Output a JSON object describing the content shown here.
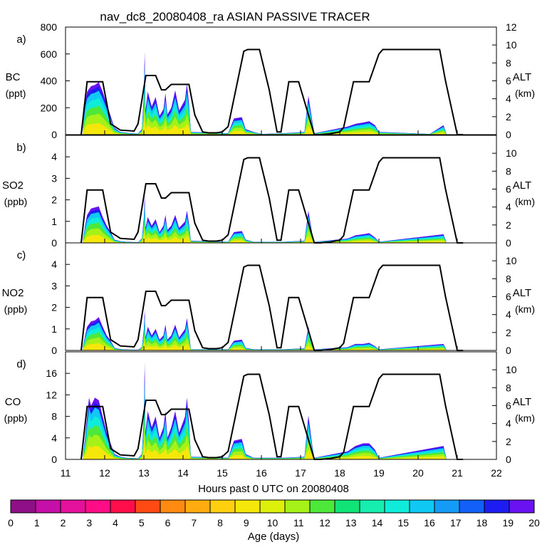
{
  "title": "nav_dc8_20080408_ra ASIAN PASSIVE TRACER",
  "chart_data": {
    "type": "area",
    "x_axis": {
      "label": "Hours past 0 UTC on 20080408",
      "range": [
        11,
        22
      ],
      "ticks": [
        "11",
        "12",
        "13",
        "14",
        "15",
        "16",
        "17",
        "18",
        "19",
        "20",
        "21",
        "22"
      ]
    },
    "altitude": {
      "label": "ALT",
      "unit": "(km)",
      "points": [
        [
          11.4,
          0
        ],
        [
          11.55,
          5.9
        ],
        [
          11.95,
          5.9
        ],
        [
          12.15,
          1.2
        ],
        [
          12.4,
          0.5
        ],
        [
          12.75,
          0.4
        ],
        [
          12.85,
          1.2
        ],
        [
          13.05,
          6.6
        ],
        [
          13.3,
          6.6
        ],
        [
          13.45,
          5.0
        ],
        [
          13.55,
          5.0
        ],
        [
          13.7,
          5.6
        ],
        [
          14.15,
          5.6
        ],
        [
          14.3,
          2.2
        ],
        [
          14.5,
          0.3
        ],
        [
          14.65,
          0.2
        ],
        [
          14.85,
          0.2
        ],
        [
          15.0,
          0.3
        ],
        [
          15.15,
          0.9
        ],
        [
          15.55,
          9.3
        ],
        [
          15.65,
          9.5
        ],
        [
          15.95,
          9.5
        ],
        [
          16.2,
          5.0
        ],
        [
          16.4,
          0.3
        ],
        [
          16.5,
          0.3
        ],
        [
          16.7,
          5.9
        ],
        [
          16.95,
          5.9
        ],
        [
          17.35,
          0
        ],
        [
          17.5,
          0
        ],
        [
          17.75,
          0.1
        ],
        [
          18.0,
          0.3
        ],
        [
          18.1,
          0.8
        ],
        [
          18.35,
          5.9
        ],
        [
          18.75,
          5.9
        ],
        [
          19.0,
          9.0
        ],
        [
          19.1,
          9.5
        ],
        [
          20.55,
          9.5
        ],
        [
          20.7,
          6.0
        ],
        [
          21.0,
          0
        ],
        [
          21.15,
          0
        ]
      ]
    },
    "panels": [
      {
        "id": "a)",
        "species": "BC",
        "unit": "(ppt)",
        "ylim": [
          0,
          800
        ],
        "yticks": [
          "0",
          "200",
          "400",
          "600",
          "800"
        ],
        "alt_ticks": [
          "0",
          "2",
          "4",
          "6",
          "8",
          "10",
          "12"
        ],
        "alt_max": 12,
        "tracer": [
          [
            11.45,
            60
          ],
          [
            11.5,
            240
          ],
          [
            11.55,
            320
          ],
          [
            11.65,
            360
          ],
          [
            11.75,
            370
          ],
          [
            11.85,
            390
          ],
          [
            11.95,
            320
          ],
          [
            12.05,
            230
          ],
          [
            12.15,
            140
          ],
          [
            12.25,
            50
          ],
          [
            12.4,
            20
          ],
          [
            12.55,
            15
          ],
          [
            12.65,
            10
          ],
          [
            12.85,
            8
          ],
          [
            12.95,
            40
          ],
          [
            13.0,
            300
          ],
          [
            13.02,
            620
          ],
          [
            13.04,
            180
          ],
          [
            13.1,
            320
          ],
          [
            13.2,
            210
          ],
          [
            13.3,
            280
          ],
          [
            13.4,
            140
          ],
          [
            13.5,
            190
          ],
          [
            13.55,
            310
          ],
          [
            13.6,
            150
          ],
          [
            13.7,
            200
          ],
          [
            13.8,
            330
          ],
          [
            13.9,
            180
          ],
          [
            14.05,
            260
          ],
          [
            14.1,
            380
          ],
          [
            14.15,
            230
          ],
          [
            14.2,
            20
          ],
          [
            15.15,
            10
          ],
          [
            15.3,
            120
          ],
          [
            15.5,
            130
          ],
          [
            15.6,
            40
          ],
          [
            15.8,
            20
          ],
          [
            16.0,
            5
          ],
          [
            16.55,
            10
          ],
          [
            17.1,
            20
          ],
          [
            17.2,
            290
          ],
          [
            17.3,
            100
          ],
          [
            17.35,
            10
          ],
          [
            18.2,
            60
          ],
          [
            18.4,
            80
          ],
          [
            18.6,
            90
          ],
          [
            18.75,
            100
          ],
          [
            18.9,
            70
          ],
          [
            19.0,
            20
          ],
          [
            20.3,
            5
          ],
          [
            20.65,
            70
          ],
          [
            20.72,
            10
          ]
        ]
      },
      {
        "id": "b)",
        "species": "SO2",
        "unit": "(ppb)",
        "ylim": [
          0,
          5
        ],
        "yticks": [
          "0",
          "1",
          "2",
          "3",
          "4"
        ],
        "alt_ticks": [
          "0",
          "2",
          "4",
          "6",
          "8",
          "10"
        ],
        "alt_max": 12,
        "tracer": [
          [
            11.45,
            0.2
          ],
          [
            11.5,
            0.8
          ],
          [
            11.55,
            1.3
          ],
          [
            11.65,
            1.6
          ],
          [
            11.75,
            1.65
          ],
          [
            11.85,
            1.7
          ],
          [
            11.95,
            1.2
          ],
          [
            12.05,
            0.8
          ],
          [
            12.15,
            0.5
          ],
          [
            12.25,
            0.15
          ],
          [
            12.4,
            0.08
          ],
          [
            12.55,
            0.05
          ],
          [
            12.85,
            0.03
          ],
          [
            12.95,
            0.2
          ],
          [
            13.0,
            1.2
          ],
          [
            13.02,
            2.2
          ],
          [
            13.04,
            0.7
          ],
          [
            13.1,
            1.2
          ],
          [
            13.2,
            0.8
          ],
          [
            13.3,
            1.1
          ],
          [
            13.4,
            0.5
          ],
          [
            13.5,
            0.8
          ],
          [
            13.55,
            1.3
          ],
          [
            13.6,
            0.6
          ],
          [
            13.7,
            0.8
          ],
          [
            13.8,
            1.3
          ],
          [
            13.9,
            0.7
          ],
          [
            14.05,
            1.0
          ],
          [
            14.1,
            1.5
          ],
          [
            14.15,
            0.9
          ],
          [
            14.2,
            0.1
          ],
          [
            15.15,
            0.05
          ],
          [
            15.3,
            0.5
          ],
          [
            15.5,
            0.55
          ],
          [
            15.6,
            0.15
          ],
          [
            15.8,
            0.05
          ],
          [
            16.55,
            0.05
          ],
          [
            17.1,
            0.1
          ],
          [
            17.2,
            1.5
          ],
          [
            17.3,
            0.4
          ],
          [
            17.35,
            0.05
          ],
          [
            18.2,
            0.2
          ],
          [
            18.4,
            0.35
          ],
          [
            18.6,
            0.4
          ],
          [
            18.75,
            0.45
          ],
          [
            18.9,
            0.25
          ],
          [
            19.0,
            0.05
          ],
          [
            20.65,
            0.4
          ],
          [
            20.72,
            0.05
          ]
        ]
      },
      {
        "id": "c)",
        "species": "NO2",
        "unit": "(ppb)",
        "ylim": [
          0,
          5
        ],
        "yticks": [
          "0",
          "1",
          "2",
          "3",
          "4"
        ],
        "alt_ticks": [
          "0",
          "2",
          "4",
          "6",
          "8",
          "10"
        ],
        "alt_max": 12,
        "tracer": [
          [
            11.45,
            0.2
          ],
          [
            11.5,
            0.7
          ],
          [
            11.55,
            1.1
          ],
          [
            11.65,
            1.35
          ],
          [
            11.75,
            1.4
          ],
          [
            11.85,
            1.55
          ],
          [
            11.95,
            1.1
          ],
          [
            12.05,
            0.7
          ],
          [
            12.15,
            0.45
          ],
          [
            12.25,
            0.12
          ],
          [
            12.4,
            0.06
          ],
          [
            12.55,
            0.04
          ],
          [
            12.85,
            0.03
          ],
          [
            12.95,
            0.15
          ],
          [
            13.0,
            1.0
          ],
          [
            13.02,
            1.9
          ],
          [
            13.04,
            0.6
          ],
          [
            13.1,
            1.1
          ],
          [
            13.2,
            0.7
          ],
          [
            13.3,
            1.0
          ],
          [
            13.4,
            0.5
          ],
          [
            13.5,
            0.7
          ],
          [
            13.55,
            1.2
          ],
          [
            13.6,
            0.5
          ],
          [
            13.7,
            0.7
          ],
          [
            13.8,
            1.2
          ],
          [
            13.9,
            0.6
          ],
          [
            14.05,
            1.0
          ],
          [
            14.1,
            1.5
          ],
          [
            14.15,
            0.8
          ],
          [
            14.2,
            0.05
          ],
          [
            15.15,
            0.05
          ],
          [
            15.3,
            0.45
          ],
          [
            15.5,
            0.5
          ],
          [
            15.6,
            0.12
          ],
          [
            15.8,
            0.05
          ],
          [
            16.55,
            0.05
          ],
          [
            17.1,
            0.1
          ],
          [
            17.2,
            1.1
          ],
          [
            17.3,
            0.3
          ],
          [
            17.35,
            0.05
          ],
          [
            18.2,
            0.15
          ],
          [
            18.4,
            0.3
          ],
          [
            18.6,
            0.3
          ],
          [
            18.75,
            0.35
          ],
          [
            18.9,
            0.2
          ],
          [
            19.0,
            0.05
          ],
          [
            20.65,
            0.3
          ],
          [
            20.72,
            0.05
          ]
        ]
      },
      {
        "id": "d)",
        "species": "CO",
        "unit": "(ppb)",
        "ylim": [
          0,
          20
        ],
        "yticks": [
          "0",
          "4",
          "8",
          "12",
          "16"
        ],
        "alt_ticks": [
          "0",
          "2",
          "4",
          "6",
          "8",
          "10"
        ],
        "alt_max": 12,
        "tracer": [
          [
            11.45,
            1
          ],
          [
            11.5,
            4
          ],
          [
            11.55,
            8
          ],
          [
            11.6,
            11.5
          ],
          [
            11.65,
            10
          ],
          [
            11.75,
            11.5
          ],
          [
            11.85,
            11
          ],
          [
            11.95,
            8
          ],
          [
            12.05,
            5
          ],
          [
            12.15,
            3
          ],
          [
            12.25,
            1
          ],
          [
            12.4,
            0.5
          ],
          [
            12.55,
            0.3
          ],
          [
            12.85,
            0.2
          ],
          [
            12.95,
            1
          ],
          [
            13.0,
            8
          ],
          [
            13.02,
            18
          ],
          [
            13.04,
            5
          ],
          [
            13.1,
            9
          ],
          [
            13.2,
            6
          ],
          [
            13.3,
            8
          ],
          [
            13.4,
            4
          ],
          [
            13.5,
            6
          ],
          [
            13.55,
            9
          ],
          [
            13.6,
            4
          ],
          [
            13.7,
            6
          ],
          [
            13.8,
            9
          ],
          [
            13.9,
            5
          ],
          [
            14.05,
            8
          ],
          [
            14.1,
            11.5
          ],
          [
            14.15,
            7
          ],
          [
            14.2,
            0.5
          ],
          [
            15.15,
            0.3
          ],
          [
            15.3,
            3.5
          ],
          [
            15.5,
            3.8
          ],
          [
            15.6,
            1
          ],
          [
            15.8,
            0.3
          ],
          [
            16.55,
            0.3
          ],
          [
            17.1,
            0.5
          ],
          [
            17.2,
            8.2
          ],
          [
            17.3,
            2.5
          ],
          [
            17.35,
            0.3
          ],
          [
            18.2,
            1.5
          ],
          [
            18.4,
            2.5
          ],
          [
            18.6,
            3
          ],
          [
            18.75,
            3
          ],
          [
            18.9,
            1.8
          ],
          [
            19.0,
            0.3
          ],
          [
            20.65,
            2.5
          ],
          [
            20.72,
            0.3
          ]
        ]
      }
    ],
    "colorbar": {
      "label": "Age (days)",
      "ticks": [
        "0",
        "1",
        "2",
        "3",
        "4",
        "5",
        "6",
        "7",
        "8",
        "9",
        "10",
        "11",
        "12",
        "13",
        "14",
        "15",
        "16",
        "17",
        "18",
        "19",
        "20"
      ],
      "colors": [
        "#8f0f86",
        "#c410a8",
        "#e4119c",
        "#ff0d87",
        "#ff0e4a",
        "#ff4a16",
        "#ff8a12",
        "#ffac10",
        "#ffd010",
        "#f5e70a",
        "#dcf00a",
        "#a6f218",
        "#4ee83a",
        "#10e476",
        "#15eeae",
        "#10ecda",
        "#0fc8f4",
        "#149bf8",
        "#1260f8",
        "#1d1cf2",
        "#6a12f2"
      ]
    }
  }
}
